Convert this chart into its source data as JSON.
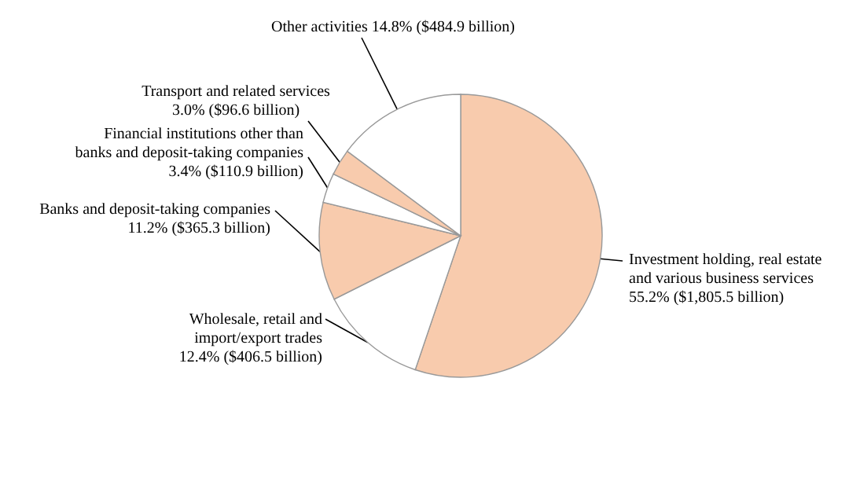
{
  "chart_data": {
    "type": "pie",
    "categories": [
      "Investment holding, real estate and various business services",
      "Wholesale, retail and import/export trades",
      "Banks and deposit-taking companies",
      "Financial institutions other than banks and deposit-taking companies",
      "Transport and related services",
      "Other activities"
    ],
    "values": [
      55.2,
      12.4,
      11.2,
      3.4,
      3.0,
      14.8
    ],
    "colors": [
      "#f8cbad",
      "#ffffff",
      "#f8cbad",
      "#ffffff",
      "#f8cbad",
      "#ffffff"
    ],
    "value_labels": [
      "55.2% ($1,805.5 billion)",
      "12.4% ($406.5 billion)",
      "11.2% ($365.3 billion)",
      "3.4% ($110.9 billion)",
      "3.0% ($96.6 billion)",
      "14.8% ($484.9 billion)"
    ]
  }
}
